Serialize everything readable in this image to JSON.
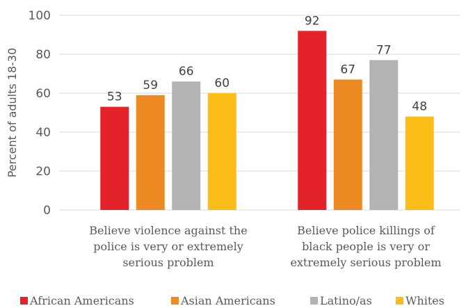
{
  "chart_data": {
    "type": "bar",
    "title": "",
    "xlabel": "",
    "ylabel": "Percent of adults 18-30",
    "ylim": [
      0,
      100
    ],
    "yticks": [
      0,
      20,
      40,
      60,
      80,
      100
    ],
    "grid": true,
    "legend_position": "bottom",
    "categories": [
      [
        "Believe violence against the",
        "police is very or extremely",
        "serious problem"
      ],
      [
        "Believe police killings of",
        "black people is very or",
        "extremely serious problem"
      ]
    ],
    "series": [
      {
        "name": "African Americans",
        "color": "#e32329",
        "values": [
          53,
          92
        ]
      },
      {
        "name": "Asian Americans",
        "color": "#ee8a24",
        "values": [
          59,
          67
        ]
      },
      {
        "name": "Latino/as",
        "color": "#b3b3b3",
        "values": [
          66,
          77
        ]
      },
      {
        "name": "Whites",
        "color": "#fbbd17",
        "values": [
          60,
          48
        ]
      }
    ]
  }
}
